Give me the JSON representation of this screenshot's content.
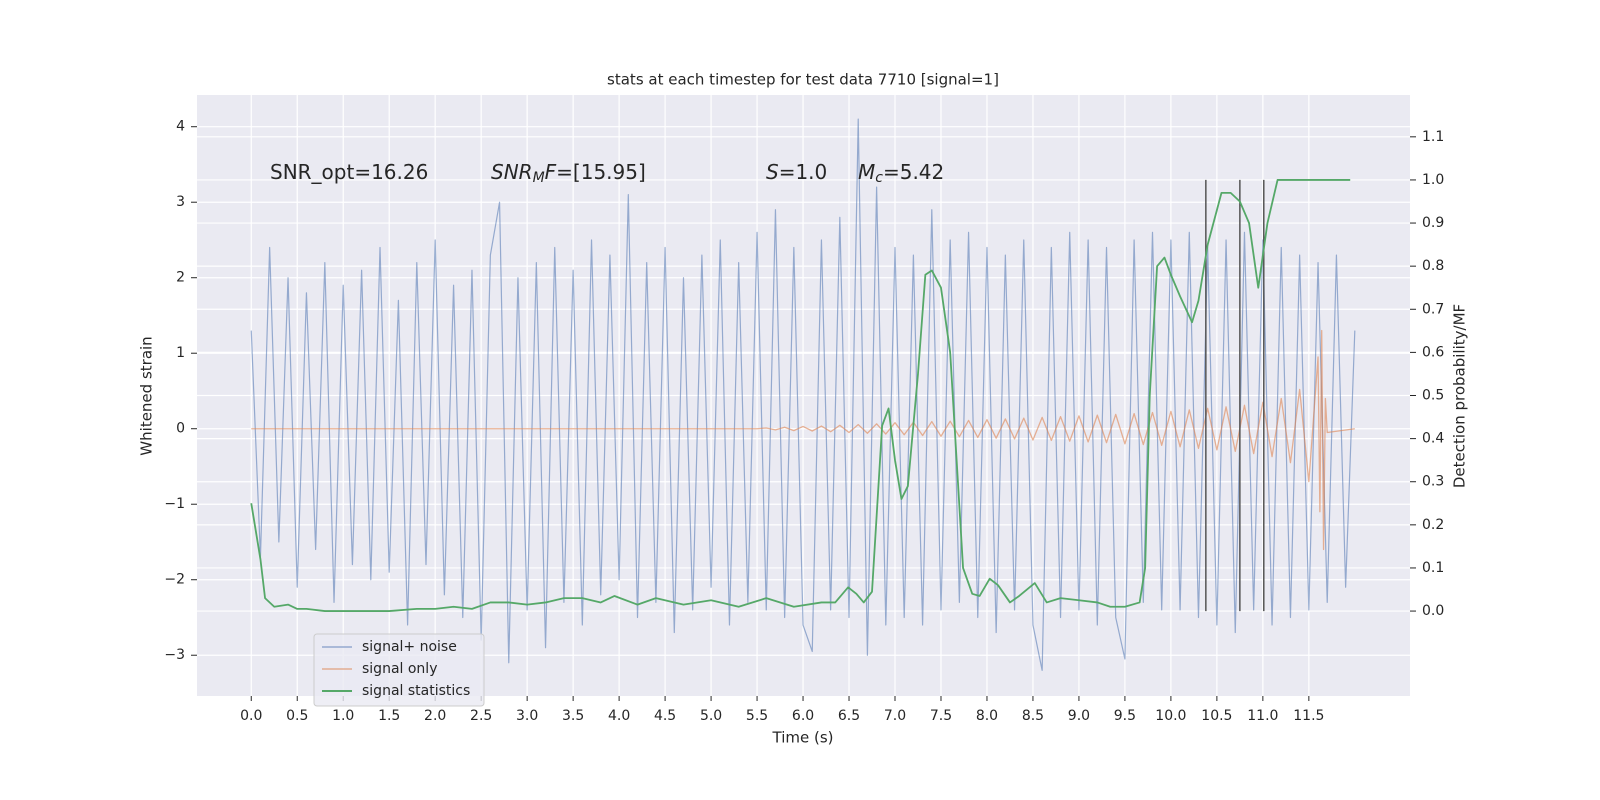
{
  "chart_data": {
    "type": "line",
    "title": "stats at each timestep for test data 7710 [signal=1]",
    "xlabel": "Time (s)",
    "ylabel": "Whitened strain",
    "y2label": "Detection probability/MF",
    "xlim": [
      -0.59,
      12.6
    ],
    "ylim": [
      -3.54,
      4.42
    ],
    "y2lim": [
      -0.197,
      1.197
    ],
    "xticks": [
      {
        "value": 0,
        "label": "0.0"
      },
      0.5,
      {
        "value": 1,
        "label": "1.0"
      },
      1.5,
      {
        "value": 2,
        "label": "2.0"
      },
      2.5,
      {
        "value": 3,
        "label": "3.0"
      },
      3.5,
      {
        "value": 4,
        "label": "4.0"
      },
      4.5,
      {
        "value": 5,
        "label": "5.0"
      },
      5.5,
      {
        "value": 6,
        "label": "6.0"
      },
      6.5,
      {
        "value": 7,
        "label": "7.0"
      },
      7.5,
      {
        "value": 8,
        "label": "8.0"
      },
      8.5,
      {
        "value": 9,
        "label": "9.0"
      },
      9.5,
      {
        "value": 10,
        "label": "10.0"
      },
      10.5,
      {
        "value": 11,
        "label": "11.0"
      },
      11.5
    ],
    "yticks": [
      {
        "value": -3,
        "label": "−3"
      },
      {
        "value": -2,
        "label": "−2"
      },
      {
        "value": -1,
        "label": "−1"
      },
      0,
      1,
      2,
      3,
      4
    ],
    "y2ticks": [
      {
        "value": 0,
        "label": "0.0"
      },
      0.1,
      0.2,
      0.3,
      0.4,
      0.5,
      0.6,
      0.7,
      0.8,
      0.9,
      {
        "value": 1,
        "label": "1.0"
      },
      1.1
    ],
    "grid": true,
    "legend": "lower left",
    "series": [
      {
        "name": "signal+ noise",
        "color": "#4c72b0",
        "x": [
          0,
          0.1,
          0.2,
          0.3,
          0.4,
          0.5,
          0.6,
          0.7,
          0.8,
          0.9,
          1.0,
          1.1,
          1.2,
          1.3,
          1.4,
          1.5,
          1.6,
          1.7,
          1.8,
          1.9,
          2.0,
          2.1,
          2.2,
          2.3,
          2.4,
          2.5,
          2.6,
          2.7,
          2.8,
          2.9,
          3.0,
          3.1,
          3.2,
          3.3,
          3.4,
          3.5,
          3.6,
          3.7,
          3.8,
          3.9,
          4.0,
          4.1,
          4.2,
          4.3,
          4.4,
          4.5,
          4.6,
          4.7,
          4.8,
          4.9,
          5.0,
          5.1,
          5.2,
          5.3,
          5.4,
          5.5,
          5.6,
          5.7,
          5.8,
          5.9,
          6.0,
          6.1,
          6.2,
          6.3,
          6.4,
          6.5,
          6.6,
          6.7,
          6.8,
          6.9,
          7.0,
          7.1,
          7.2,
          7.3,
          7.4,
          7.5,
          7.6,
          7.7,
          7.8,
          7.9,
          8.0,
          8.1,
          8.2,
          8.3,
          8.4,
          8.5,
          8.6,
          8.7,
          8.8,
          8.9,
          9.0,
          9.1,
          9.2,
          9.3,
          9.4,
          9.5,
          9.6,
          9.7,
          9.8,
          9.9,
          10.0,
          10.1,
          10.2,
          10.3,
          10.4,
          10.5,
          10.6,
          10.7,
          10.8,
          10.9,
          11.0,
          11.1,
          11.2,
          11.3,
          11.4,
          11.5,
          11.6,
          11.7,
          11.8,
          11.9,
          12.0
        ],
        "values": [
          1.3,
          -1.7,
          2.4,
          -1.5,
          2.0,
          -2.1,
          1.8,
          -1.6,
          2.2,
          -2.3,
          1.9,
          -1.8,
          2.1,
          -2.0,
          2.4,
          -1.9,
          1.7,
          -2.6,
          2.2,
          -1.8,
          2.5,
          -2.2,
          1.9,
          -2.5,
          2.1,
          -2.8,
          2.3,
          3.0,
          -3.1,
          2.0,
          -2.4,
          2.2,
          -2.9,
          2.4,
          -2.3,
          2.1,
          -2.6,
          2.5,
          -2.2,
          2.3,
          -2.0,
          3.1,
          -2.5,
          2.2,
          -2.3,
          2.4,
          -2.7,
          2.0,
          -2.4,
          2.3,
          -2.1,
          2.5,
          -2.6,
          2.2,
          -2.3,
          2.6,
          -2.4,
          2.9,
          -2.5,
          2.4,
          -2.6,
          -2.95,
          2.5,
          -2.4,
          2.8,
          -2.5,
          4.1,
          -3.0,
          3.2,
          -2.6,
          2.4,
          -2.5,
          2.3,
          -2.6,
          2.9,
          -2.4,
          2.5,
          -2.3,
          2.6,
          -2.5,
          2.4,
          -2.7,
          2.3,
          -2.4,
          2.5,
          -2.6,
          -3.2,
          2.4,
          -2.5,
          2.6,
          -2.4,
          2.5,
          -2.6,
          2.4,
          -2.5,
          -3.05,
          2.5,
          -2.3,
          2.6,
          -2.4,
          2.5,
          -2.4,
          2.6,
          -2.5,
          2.4,
          -2.6,
          2.5,
          -2.7,
          2.6,
          -2.4,
          2.5,
          -2.6,
          2.4,
          -2.5,
          2.3,
          -2.4,
          2.2,
          -2.3,
          2.3,
          -2.1,
          1.3
        ]
      },
      {
        "name": "signal only",
        "color": "#dd8452",
        "x": [
          0,
          5.5,
          5.6,
          5.7,
          5.8,
          5.9,
          6.0,
          6.1,
          6.2,
          6.3,
          6.4,
          6.5,
          6.6,
          6.7,
          6.8,
          6.9,
          7.0,
          7.1,
          7.2,
          7.3,
          7.4,
          7.5,
          7.6,
          7.7,
          7.8,
          7.9,
          8.0,
          8.1,
          8.2,
          8.3,
          8.4,
          8.5,
          8.6,
          8.7,
          8.8,
          8.9,
          9.0,
          9.1,
          9.2,
          9.3,
          9.4,
          9.5,
          9.6,
          9.7,
          9.8,
          9.9,
          10.0,
          10.1,
          10.2,
          10.3,
          10.4,
          10.5,
          10.6,
          10.7,
          10.8,
          10.9,
          11.0,
          11.1,
          11.2,
          11.3,
          11.4,
          11.5,
          11.6,
          11.62,
          11.64,
          11.66,
          11.68,
          11.7,
          12.0
        ],
        "values": [
          0,
          0,
          0.01,
          -0.015,
          0.02,
          -0.025,
          0.03,
          -0.03,
          0.035,
          -0.04,
          0.045,
          -0.05,
          0.055,
          -0.06,
          0.065,
          -0.07,
          0.08,
          -0.08,
          0.085,
          -0.09,
          0.095,
          -0.1,
          0.1,
          -0.105,
          0.11,
          -0.115,
          0.12,
          -0.125,
          0.13,
          -0.135,
          0.14,
          -0.15,
          0.15,
          -0.155,
          0.16,
          -0.165,
          0.17,
          -0.175,
          0.18,
          -0.185,
          0.19,
          -0.2,
          0.2,
          -0.21,
          0.215,
          -0.22,
          0.23,
          -0.24,
          0.25,
          -0.26,
          0.27,
          -0.28,
          0.29,
          -0.3,
          0.31,
          -0.33,
          0.35,
          -0.37,
          0.4,
          -0.45,
          0.52,
          -0.7,
          0.95,
          -1.1,
          1.3,
          -1.6,
          0.4,
          -0.05,
          0
        ]
      },
      {
        "name": "signal statistics",
        "color": "#55a868",
        "axis": "y2",
        "x": [
          0,
          0.1,
          0.15,
          0.25,
          0.4,
          0.5,
          0.6,
          0.8,
          1.0,
          1.5,
          1.8,
          2.0,
          2.2,
          2.4,
          2.6,
          2.8,
          3.0,
          3.2,
          3.4,
          3.6,
          3.8,
          3.95,
          4.2,
          4.4,
          4.7,
          5.0,
          5.3,
          5.6,
          5.9,
          6.2,
          6.35,
          6.49,
          6.58,
          6.66,
          6.75,
          6.86,
          6.93,
          7.0,
          7.07,
          7.14,
          7.25,
          7.33,
          7.4,
          7.5,
          7.6,
          7.74,
          7.84,
          7.92,
          8.03,
          8.12,
          8.25,
          8.35,
          8.52,
          8.65,
          8.8,
          9.0,
          9.2,
          9.34,
          9.5,
          9.66,
          9.72,
          9.77,
          9.85,
          9.93,
          10.0,
          10.1,
          10.23,
          10.3,
          10.4,
          10.55,
          10.65,
          10.75,
          10.85,
          10.95,
          11.05,
          11.16,
          11.3,
          11.95
        ],
        "values": [
          0.25,
          0.12,
          0.03,
          0.01,
          0.015,
          0.005,
          0.005,
          0,
          0,
          0,
          0.005,
          0.005,
          0.01,
          0.005,
          0.02,
          0.02,
          0.015,
          0.02,
          0.03,
          0.03,
          0.02,
          0.035,
          0.015,
          0.03,
          0.015,
          0.025,
          0.01,
          0.03,
          0.01,
          0.02,
          0.02,
          0.055,
          0.04,
          0.02,
          0.045,
          0.43,
          0.47,
          0.35,
          0.26,
          0.29,
          0.55,
          0.78,
          0.79,
          0.75,
          0.6,
          0.1,
          0.04,
          0.035,
          0.075,
          0.06,
          0.02,
          0.035,
          0.065,
          0.02,
          0.03,
          0.025,
          0.02,
          0.01,
          0.01,
          0.02,
          0.1,
          0.5,
          0.8,
          0.82,
          0.78,
          0.73,
          0.67,
          0.72,
          0.85,
          0.97,
          0.97,
          0.95,
          0.9,
          0.75,
          0.9,
          1.0,
          1.0,
          1.0
        ]
      }
    ],
    "vlines": {
      "x": [
        10.38,
        10.75,
        11.01
      ],
      "ymin": 0,
      "ymax": 1,
      "axis": "y2",
      "color": "#555555"
    },
    "annotations": [
      {
        "parts": [
          {
            "text": "SNR_opt=16.26"
          }
        ]
      },
      {
        "parts": [
          {
            "text": "SNR",
            "style": "italic"
          },
          {
            "text": "M",
            "style": "italic-sub"
          },
          {
            "text": "F",
            "style": "italic"
          },
          {
            "text": "=[15.95]"
          }
        ]
      },
      {
        "parts": [
          {
            "text": "S",
            "style": "italic"
          },
          {
            "text": "=1.0"
          }
        ]
      },
      {
        "parts": [
          {
            "text": "M",
            "style": "italic"
          },
          {
            "text": "c",
            "style": "italic-sub"
          },
          {
            "text": "=5.42"
          }
        ]
      }
    ]
  }
}
